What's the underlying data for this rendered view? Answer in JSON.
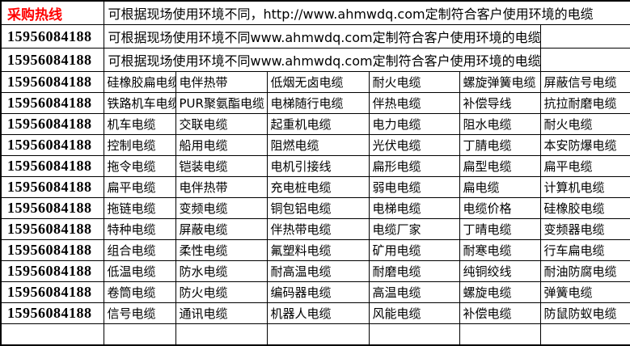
{
  "colors": {
    "accent_red": "#ff0000",
    "border": "#000000",
    "background": "#ffffff",
    "text": "#000000"
  },
  "hotline": {
    "label": "采购热线",
    "phone": "15956084188"
  },
  "banner": {
    "row1": "可根据现场使用环境不同，http://www.ahmwdq.com定制符合客户使用环境的电缆",
    "repeat_text": "可根据现场使用环境不同www.ahmwdq.com定制符合客户使用环境的电缆"
  },
  "product_rows": [
    [
      "硅橡胶扁电缆",
      "电伴热带",
      "低烟无卤电缆",
      "耐火电缆",
      "螺旋弹簧电缆",
      "屏蔽信号电缆"
    ],
    [
      "铁路机车电缆",
      "PUR聚氨酯电缆",
      "电梯随行电缆",
      "伴热电缆",
      "补偿导线",
      "抗拉耐磨电缆"
    ],
    [
      "机车电缆",
      "交联电缆",
      "起重机电缆",
      "电力电缆",
      "阻水电缆",
      "耐火电缆"
    ],
    [
      "控制电缆",
      "船用电缆",
      "阻燃电缆",
      "光伏电缆",
      "丁腈电缆",
      "本安防爆电缆"
    ],
    [
      "拖令电缆",
      "铠装电缆",
      "电机引接线",
      "扁形电缆",
      "扁型电缆",
      "扁平电缆"
    ],
    [
      "扁平电缆",
      "电伴热带",
      "充电桩电缆",
      "弱电电缆",
      "扁电缆",
      "计算机电缆"
    ],
    [
      "拖链电缆",
      "变频电缆",
      "铜包铝电缆",
      "电梯电缆",
      "电缆价格",
      "硅橡胶电缆"
    ],
    [
      "特种电缆",
      "屏蔽电缆",
      "伴热带电缆",
      "电缆厂家",
      "丁晴电缆",
      "变频器电缆"
    ],
    [
      "组合电缆",
      "柔性电缆",
      "氟塑料电缆",
      "矿用电缆",
      "耐寒电缆",
      "行车扁电缆"
    ],
    [
      "低温电缆",
      "防水电缆",
      "耐高温电缆",
      "耐磨电缆",
      "纯铜绞线",
      "耐油防腐电缆"
    ],
    [
      "卷筒电缆",
      "防火电缆",
      "编码器电缆",
      "高温电缆",
      "螺旋电缆",
      "弹簧电缆"
    ],
    [
      "信号电缆",
      "通讯电缆",
      "机器人电缆",
      "风能电缆",
      "补偿电缆",
      "防鼠防蚁电缆"
    ]
  ]
}
